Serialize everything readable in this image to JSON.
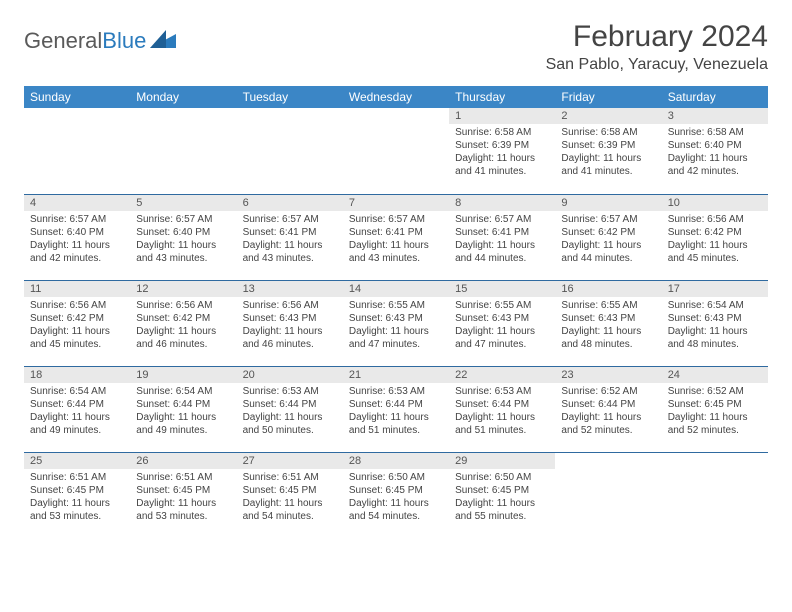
{
  "brand": {
    "part1": "General",
    "part2": "Blue"
  },
  "title": "February 2024",
  "location": "San Pablo, Yaracuy, Venezuela",
  "colors": {
    "header_bg": "#3b86c6",
    "header_text": "#ffffff",
    "daynum_bg": "#e9e9e9",
    "rule": "#2f6aa0",
    "text": "#444444"
  },
  "weekdays": [
    "Sunday",
    "Monday",
    "Tuesday",
    "Wednesday",
    "Thursday",
    "Friday",
    "Saturday"
  ],
  "weeks": [
    [
      {
        "n": "",
        "empty": true
      },
      {
        "n": "",
        "empty": true
      },
      {
        "n": "",
        "empty": true
      },
      {
        "n": "",
        "empty": true
      },
      {
        "n": "1",
        "sr": "Sunrise: 6:58 AM",
        "ss": "Sunset: 6:39 PM",
        "dl": "Daylight: 11 hours and 41 minutes."
      },
      {
        "n": "2",
        "sr": "Sunrise: 6:58 AM",
        "ss": "Sunset: 6:39 PM",
        "dl": "Daylight: 11 hours and 41 minutes."
      },
      {
        "n": "3",
        "sr": "Sunrise: 6:58 AM",
        "ss": "Sunset: 6:40 PM",
        "dl": "Daylight: 11 hours and 42 minutes."
      }
    ],
    [
      {
        "n": "4",
        "sr": "Sunrise: 6:57 AM",
        "ss": "Sunset: 6:40 PM",
        "dl": "Daylight: 11 hours and 42 minutes."
      },
      {
        "n": "5",
        "sr": "Sunrise: 6:57 AM",
        "ss": "Sunset: 6:40 PM",
        "dl": "Daylight: 11 hours and 43 minutes."
      },
      {
        "n": "6",
        "sr": "Sunrise: 6:57 AM",
        "ss": "Sunset: 6:41 PM",
        "dl": "Daylight: 11 hours and 43 minutes."
      },
      {
        "n": "7",
        "sr": "Sunrise: 6:57 AM",
        "ss": "Sunset: 6:41 PM",
        "dl": "Daylight: 11 hours and 43 minutes."
      },
      {
        "n": "8",
        "sr": "Sunrise: 6:57 AM",
        "ss": "Sunset: 6:41 PM",
        "dl": "Daylight: 11 hours and 44 minutes."
      },
      {
        "n": "9",
        "sr": "Sunrise: 6:57 AM",
        "ss": "Sunset: 6:42 PM",
        "dl": "Daylight: 11 hours and 44 minutes."
      },
      {
        "n": "10",
        "sr": "Sunrise: 6:56 AM",
        "ss": "Sunset: 6:42 PM",
        "dl": "Daylight: 11 hours and 45 minutes."
      }
    ],
    [
      {
        "n": "11",
        "sr": "Sunrise: 6:56 AM",
        "ss": "Sunset: 6:42 PM",
        "dl": "Daylight: 11 hours and 45 minutes."
      },
      {
        "n": "12",
        "sr": "Sunrise: 6:56 AM",
        "ss": "Sunset: 6:42 PM",
        "dl": "Daylight: 11 hours and 46 minutes."
      },
      {
        "n": "13",
        "sr": "Sunrise: 6:56 AM",
        "ss": "Sunset: 6:43 PM",
        "dl": "Daylight: 11 hours and 46 minutes."
      },
      {
        "n": "14",
        "sr": "Sunrise: 6:55 AM",
        "ss": "Sunset: 6:43 PM",
        "dl": "Daylight: 11 hours and 47 minutes."
      },
      {
        "n": "15",
        "sr": "Sunrise: 6:55 AM",
        "ss": "Sunset: 6:43 PM",
        "dl": "Daylight: 11 hours and 47 minutes."
      },
      {
        "n": "16",
        "sr": "Sunrise: 6:55 AM",
        "ss": "Sunset: 6:43 PM",
        "dl": "Daylight: 11 hours and 48 minutes."
      },
      {
        "n": "17",
        "sr": "Sunrise: 6:54 AM",
        "ss": "Sunset: 6:43 PM",
        "dl": "Daylight: 11 hours and 48 minutes."
      }
    ],
    [
      {
        "n": "18",
        "sr": "Sunrise: 6:54 AM",
        "ss": "Sunset: 6:44 PM",
        "dl": "Daylight: 11 hours and 49 minutes."
      },
      {
        "n": "19",
        "sr": "Sunrise: 6:54 AM",
        "ss": "Sunset: 6:44 PM",
        "dl": "Daylight: 11 hours and 49 minutes."
      },
      {
        "n": "20",
        "sr": "Sunrise: 6:53 AM",
        "ss": "Sunset: 6:44 PM",
        "dl": "Daylight: 11 hours and 50 minutes."
      },
      {
        "n": "21",
        "sr": "Sunrise: 6:53 AM",
        "ss": "Sunset: 6:44 PM",
        "dl": "Daylight: 11 hours and 51 minutes."
      },
      {
        "n": "22",
        "sr": "Sunrise: 6:53 AM",
        "ss": "Sunset: 6:44 PM",
        "dl": "Daylight: 11 hours and 51 minutes."
      },
      {
        "n": "23",
        "sr": "Sunrise: 6:52 AM",
        "ss": "Sunset: 6:44 PM",
        "dl": "Daylight: 11 hours and 52 minutes."
      },
      {
        "n": "24",
        "sr": "Sunrise: 6:52 AM",
        "ss": "Sunset: 6:45 PM",
        "dl": "Daylight: 11 hours and 52 minutes."
      }
    ],
    [
      {
        "n": "25",
        "sr": "Sunrise: 6:51 AM",
        "ss": "Sunset: 6:45 PM",
        "dl": "Daylight: 11 hours and 53 minutes."
      },
      {
        "n": "26",
        "sr": "Sunrise: 6:51 AM",
        "ss": "Sunset: 6:45 PM",
        "dl": "Daylight: 11 hours and 53 minutes."
      },
      {
        "n": "27",
        "sr": "Sunrise: 6:51 AM",
        "ss": "Sunset: 6:45 PM",
        "dl": "Daylight: 11 hours and 54 minutes."
      },
      {
        "n": "28",
        "sr": "Sunrise: 6:50 AM",
        "ss": "Sunset: 6:45 PM",
        "dl": "Daylight: 11 hours and 54 minutes."
      },
      {
        "n": "29",
        "sr": "Sunrise: 6:50 AM",
        "ss": "Sunset: 6:45 PM",
        "dl": "Daylight: 11 hours and 55 minutes."
      },
      {
        "n": "",
        "empty": true
      },
      {
        "n": "",
        "empty": true
      }
    ]
  ]
}
